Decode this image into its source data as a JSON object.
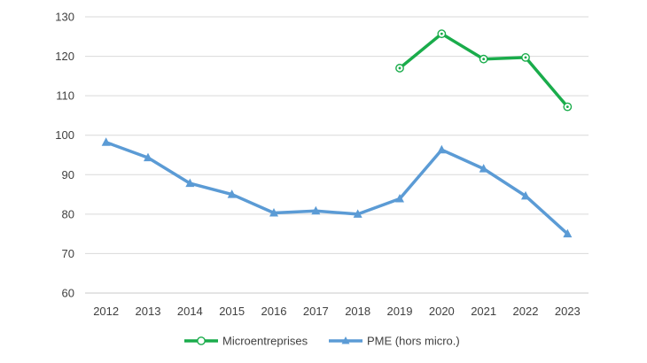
{
  "chart_data": {
    "type": "line",
    "title": "",
    "xlabel": "",
    "ylabel": "",
    "x": [
      "2012",
      "2013",
      "2014",
      "2015",
      "2016",
      "2017",
      "2018",
      "2019",
      "2020",
      "2021",
      "2022",
      "2023"
    ],
    "ylim": [
      60,
      130
    ],
    "yticks": [
      60,
      70,
      80,
      90,
      100,
      110,
      120,
      130
    ],
    "grid": true,
    "legend_position": "bottom",
    "series": [
      {
        "name": "Microentreprises",
        "color": "#1aac4b",
        "marker": "circle",
        "values": [
          null,
          null,
          null,
          null,
          null,
          null,
          null,
          117,
          125.7,
          119.3,
          119.7,
          107.2
        ]
      },
      {
        "name": "PME (hors micro.)",
        "color": "#5b9bd5",
        "marker": "triangle",
        "values": [
          98.2,
          94.3,
          87.8,
          85,
          80.3,
          80.8,
          80,
          83.9,
          96.3,
          91.5,
          84.6,
          75
        ]
      }
    ]
  }
}
